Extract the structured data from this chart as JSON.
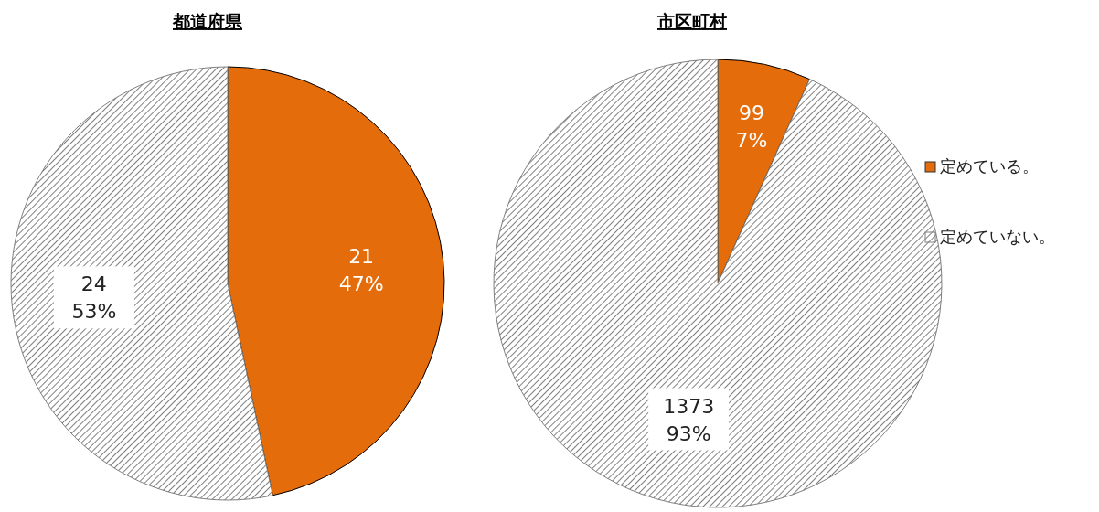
{
  "chart_data": [
    {
      "type": "pie",
      "title": "都道府県",
      "categories": [
        null,
        null
      ],
      "values": [
        21,
        24
      ],
      "colors": [
        "#e46c0a",
        "#7f7f7f"
      ],
      "value_labels": [
        "21\n47%",
        "24\n53%"
      ],
      "legend": false
    },
    {
      "type": "pie",
      "title": "市区町村",
      "categories": [
        "定めている。",
        "定めていない。"
      ],
      "values": [
        99,
        1373
      ],
      "colors": [
        "#e46c0a",
        "#7f7f7f"
      ],
      "value_labels": [
        "99\n7%",
        "1373\n93%"
      ],
      "legend": "right"
    }
  ]
}
